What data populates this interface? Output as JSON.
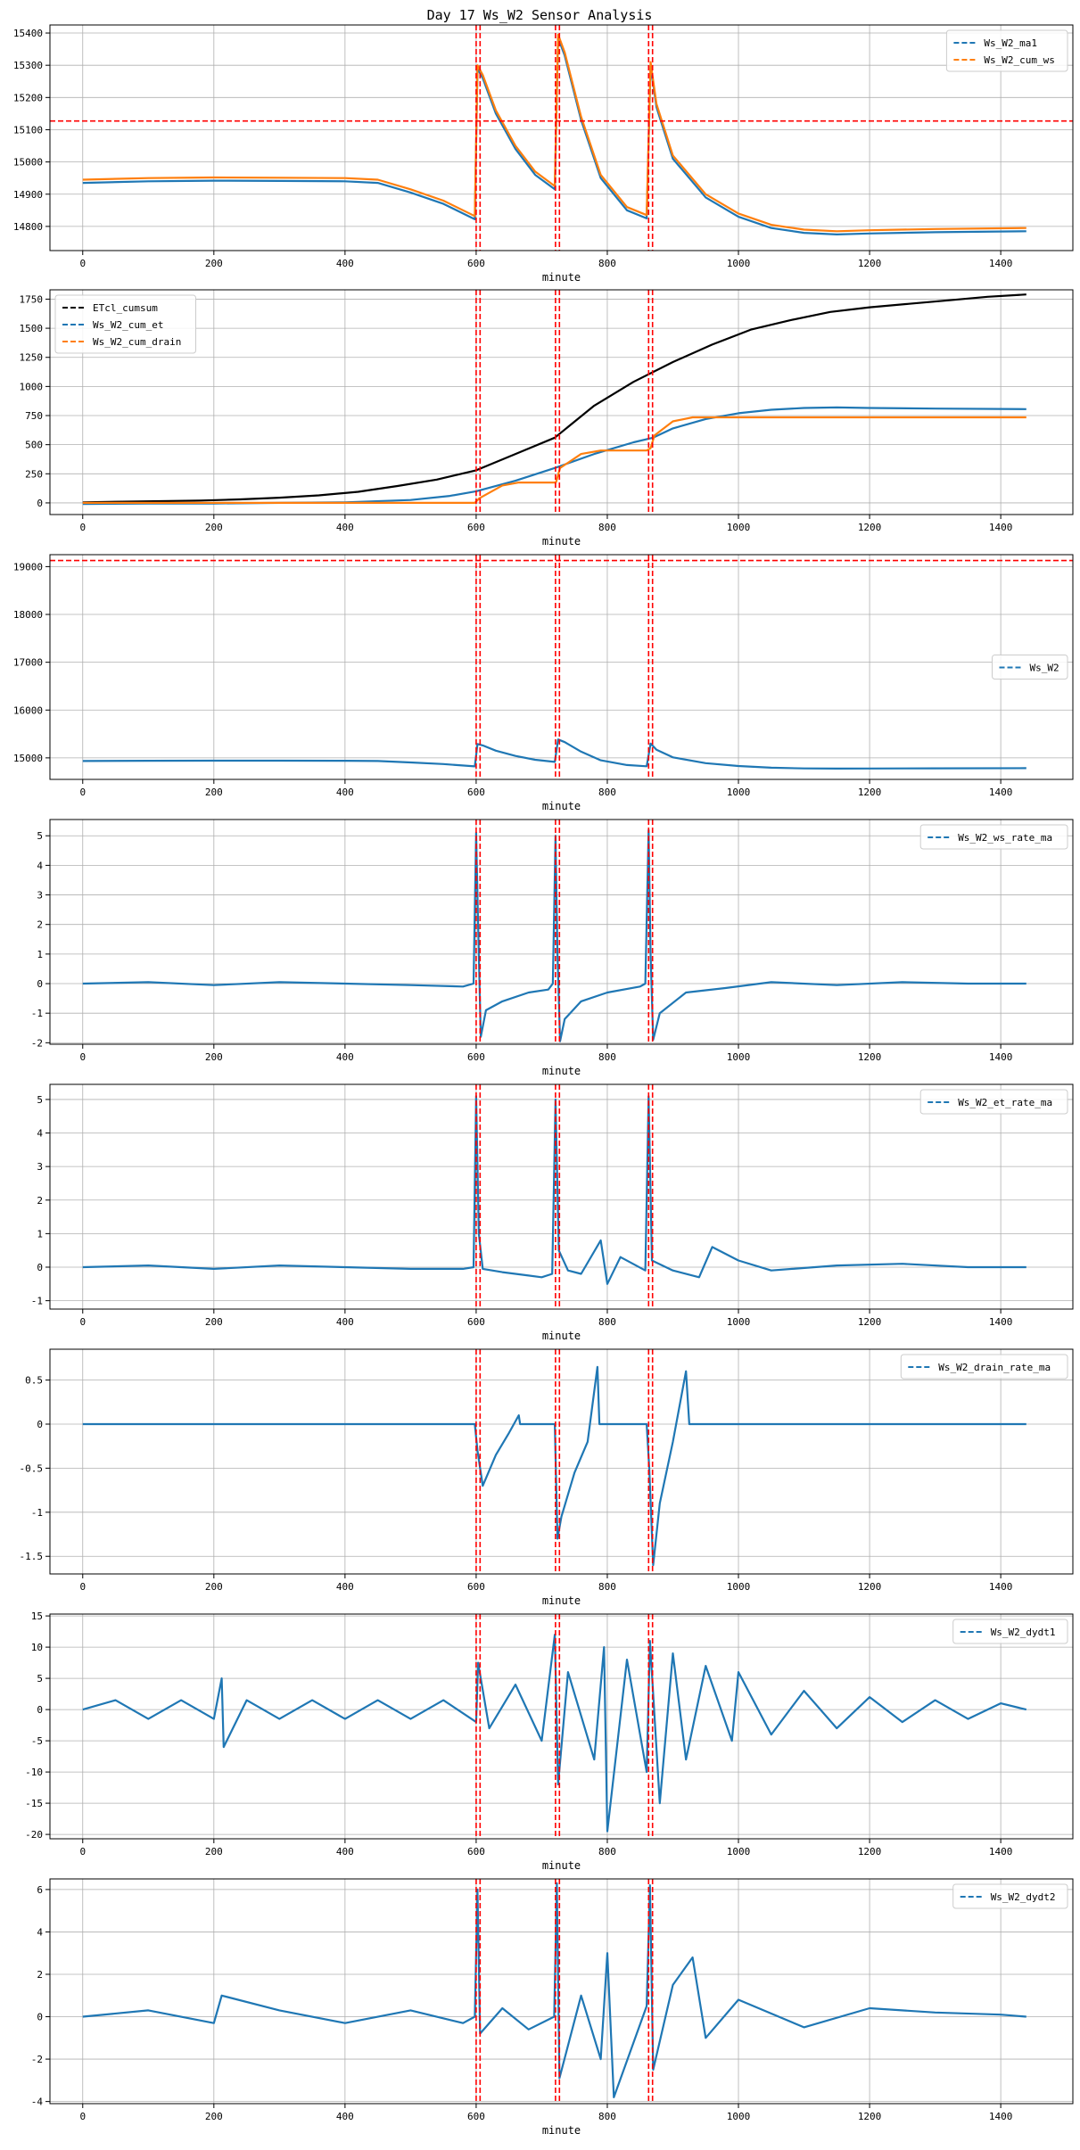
{
  "figure_title": "Day 17 Ws_W2 Sensor Analysis",
  "colors": {
    "blue": "#1f77b4",
    "orange": "#ff7f0e",
    "black": "#000000",
    "marker_red": "#ff0000",
    "grid": "#b0b0b0"
  },
  "chart_data": [
    {
      "type": "line",
      "xlabel": "minute",
      "xlim": [
        -50,
        1510
      ],
      "ylim": [
        14725,
        15425
      ],
      "xticks": [
        0,
        200,
        400,
        600,
        800,
        1000,
        1200,
        1400
      ],
      "yticks": [
        14800,
        14900,
        15000,
        15100,
        15200,
        15300,
        15400
      ],
      "vlines": [
        600,
        606,
        721,
        727,
        863,
        869
      ],
      "hlines": [
        15127
      ],
      "legend_position": "upper right",
      "series": [
        {
          "name": "Ws_W2_ma1",
          "color": "#1f77b4",
          "x": [
            0,
            100,
            200,
            300,
            400,
            450,
            500,
            550,
            598,
            602,
            610,
            630,
            660,
            690,
            720,
            725,
            735,
            760,
            790,
            830,
            860,
            866,
            875,
            900,
            950,
            1000,
            1050,
            1100,
            1150,
            1200,
            1300,
            1439
          ],
          "values": [
            14935,
            14940,
            14942,
            14941,
            14940,
            14935,
            14905,
            14870,
            14822,
            15290,
            15260,
            15150,
            15040,
            14960,
            14915,
            15385,
            15330,
            15130,
            14950,
            14850,
            14825,
            15300,
            15170,
            15010,
            14890,
            14830,
            14795,
            14780,
            14775,
            14778,
            14782,
            14785
          ]
        },
        {
          "name": "Ws_W2_cum_ws",
          "color": "#ff7f0e",
          "x": [
            0,
            100,
            200,
            300,
            400,
            450,
            500,
            550,
            598,
            602,
            610,
            630,
            660,
            690,
            720,
            725,
            735,
            760,
            790,
            830,
            860,
            866,
            875,
            900,
            950,
            1000,
            1050,
            1100,
            1150,
            1200,
            1300,
            1439
          ],
          "values": [
            14945,
            14950,
            14952,
            14951,
            14950,
            14945,
            14915,
            14880,
            14832,
            15300,
            15270,
            15160,
            15050,
            14970,
            14925,
            15395,
            15340,
            15140,
            14960,
            14860,
            14835,
            15310,
            15180,
            15020,
            14900,
            14840,
            14805,
            14790,
            14785,
            14788,
            14792,
            14795
          ]
        }
      ]
    },
    {
      "type": "line",
      "xlabel": "minute",
      "xlim": [
        -50,
        1510
      ],
      "ylim": [
        -100,
        1830
      ],
      "xticks": [
        0,
        200,
        400,
        600,
        800,
        1000,
        1200,
        1400
      ],
      "yticks": [
        0,
        250,
        500,
        750,
        1000,
        1250,
        1500,
        1750
      ],
      "vlines": [
        600,
        606,
        721,
        727,
        863,
        869
      ],
      "hlines": [],
      "legend_position": "upper left",
      "series": [
        {
          "name": "ETcl_cumsum",
          "color": "#000000",
          "x": [
            0,
            60,
            120,
            180,
            240,
            300,
            360,
            420,
            480,
            540,
            600,
            660,
            720,
            780,
            840,
            900,
            960,
            1020,
            1080,
            1140,
            1200,
            1260,
            1320,
            1380,
            1439
          ],
          "values": [
            5,
            10,
            15,
            20,
            30,
            45,
            65,
            95,
            145,
            200,
            280,
            420,
            560,
            835,
            1040,
            1210,
            1360,
            1490,
            1570,
            1640,
            1680,
            1710,
            1740,
            1770,
            1790
          ]
        },
        {
          "name": "Ws_W2_cum_et",
          "color": "#1f77b4",
          "x": [
            0,
            100,
            200,
            300,
            400,
            500,
            560,
            600,
            660,
            720,
            780,
            840,
            870,
            900,
            950,
            1000,
            1050,
            1100,
            1150,
            1200,
            1300,
            1439
          ],
          "values": [
            -10,
            -5,
            -5,
            0,
            5,
            25,
            60,
            100,
            190,
            300,
            420,
            520,
            560,
            640,
            720,
            770,
            800,
            815,
            820,
            815,
            810,
            805
          ]
        },
        {
          "name": "Ws_W2_cum_drain",
          "color": "#ff7f0e",
          "x": [
            0,
            598,
            605,
            640,
            665,
            720,
            722,
            728,
            760,
            790,
            860,
            866,
            872,
            900,
            930,
            1439
          ],
          "values": [
            0,
            0,
            40,
            150,
            175,
            175,
            180,
            300,
            420,
            450,
            450,
            470,
            580,
            700,
            735,
            735
          ]
        }
      ]
    },
    {
      "type": "line",
      "xlabel": "minute",
      "xlim": [
        -50,
        1510
      ],
      "ylim": [
        14550,
        19250
      ],
      "xticks": [
        0,
        200,
        400,
        600,
        800,
        1000,
        1200,
        1400
      ],
      "yticks": [
        15000,
        16000,
        17000,
        18000,
        19000
      ],
      "vlines": [
        600,
        606,
        721,
        727,
        863,
        869
      ],
      "hlines": [
        19127
      ],
      "legend_position": "center right",
      "series": [
        {
          "name": "Ws_W2",
          "color": "#1f77b4",
          "x": [
            0,
            100,
            200,
            300,
            400,
            450,
            500,
            550,
            598,
            602,
            610,
            630,
            660,
            690,
            720,
            725,
            735,
            760,
            790,
            830,
            860,
            866,
            875,
            900,
            950,
            1000,
            1050,
            1100,
            1150,
            1200,
            1300,
            1439
          ],
          "values": [
            14935,
            14940,
            14942,
            14941,
            14940,
            14935,
            14905,
            14870,
            14822,
            15290,
            15260,
            15150,
            15040,
            14960,
            14915,
            15385,
            15330,
            15130,
            14950,
            14850,
            14825,
            15300,
            15170,
            15010,
            14890,
            14830,
            14795,
            14780,
            14775,
            14778,
            14782,
            14785
          ]
        }
      ]
    },
    {
      "type": "line",
      "xlabel": "minute",
      "xlim": [
        -50,
        1510
      ],
      "ylim": [
        -2.05,
        5.55
      ],
      "xticks": [
        0,
        200,
        400,
        600,
        800,
        1000,
        1200,
        1400
      ],
      "yticks": [
        -2,
        -1,
        0,
        1,
        2,
        3,
        4,
        5
      ],
      "vlines": [
        600,
        606,
        721,
        727,
        863,
        869
      ],
      "hlines": [],
      "legend_position": "upper right",
      "series": [
        {
          "name": "Ws_W2_ws_rate_ma",
          "color": "#1f77b4",
          "x": [
            0,
            100,
            200,
            300,
            400,
            500,
            580,
            596,
            600,
            603,
            607,
            615,
            640,
            680,
            710,
            717,
            721,
            724,
            728,
            735,
            760,
            800,
            850,
            858,
            863,
            866,
            870,
            880,
            920,
            980,
            1050,
            1150,
            1250,
            1350,
            1439
          ],
          "values": [
            0,
            0.05,
            -0.05,
            0.05,
            0,
            -0.05,
            -0.1,
            0,
            5.1,
            2.0,
            -1.8,
            -0.9,
            -0.6,
            -0.3,
            -0.2,
            0,
            5.0,
            1.0,
            -1.95,
            -1.2,
            -0.6,
            -0.3,
            -0.1,
            0,
            5.2,
            1.0,
            -1.9,
            -1.0,
            -0.3,
            -0.15,
            0.05,
            -0.05,
            0.05,
            0,
            0
          ]
        }
      ]
    },
    {
      "type": "line",
      "xlabel": "minute",
      "xlim": [
        -50,
        1510
      ],
      "ylim": [
        -1.25,
        5.45
      ],
      "xticks": [
        0,
        200,
        400,
        600,
        800,
        1000,
        1200,
        1400
      ],
      "yticks": [
        -1,
        0,
        1,
        2,
        3,
        4,
        5
      ],
      "vlines": [
        600,
        606,
        721,
        727,
        863,
        869
      ],
      "hlines": [],
      "legend_position": "upper right",
      "series": [
        {
          "name": "Ws_W2_et_rate_ma",
          "color": "#1f77b4",
          "x": [
            0,
            100,
            200,
            300,
            400,
            500,
            580,
            596,
            600,
            604,
            610,
            640,
            680,
            700,
            716,
            721,
            726,
            740,
            760,
            790,
            800,
            820,
            858,
            863,
            868,
            900,
            940,
            960,
            1000,
            1050,
            1150,
            1250,
            1350,
            1439
          ],
          "values": [
            0,
            0.05,
            -0.05,
            0.05,
            0,
            -0.05,
            -0.05,
            0,
            5.1,
            1.0,
            -0.05,
            -0.15,
            -0.25,
            -0.3,
            -0.2,
            5.0,
            0.5,
            -0.1,
            -0.2,
            0.8,
            -0.5,
            0.3,
            -0.1,
            5.1,
            0.2,
            -0.1,
            -0.3,
            0.6,
            0.2,
            -0.1,
            0.05,
            0.1,
            0,
            0
          ]
        }
      ]
    },
    {
      "type": "line",
      "xlabel": "minute",
      "xlim": [
        -50,
        1510
      ],
      "ylim": [
        -1.7,
        0.85
      ],
      "xticks": [
        0,
        200,
        400,
        600,
        800,
        1000,
        1200,
        1400
      ],
      "yticks": [
        -1.5,
        -1.0,
        -0.5,
        0.0,
        0.5
      ],
      "vlines": [
        600,
        606,
        721,
        727,
        863,
        869
      ],
      "hlines": [],
      "legend_position": "upper right",
      "series": [
        {
          "name": "Ws_W2_drain_rate_ma",
          "color": "#1f77b4",
          "x": [
            0,
            598,
            602,
            610,
            630,
            650,
            665,
            667,
            720,
            724,
            730,
            750,
            770,
            785,
            788,
            860,
            864,
            870,
            880,
            900,
            920,
            925,
            1439
          ],
          "values": [
            0,
            0,
            -0.3,
            -0.7,
            -0.35,
            -0.1,
            0.1,
            0,
            0,
            -1.3,
            -1.05,
            -0.55,
            -0.2,
            0.65,
            0,
            0,
            -0.5,
            -1.6,
            -0.9,
            -0.2,
            0.6,
            0,
            0
          ]
        }
      ]
    },
    {
      "type": "line",
      "xlabel": "minute",
      "xlim": [
        -50,
        1510
      ],
      "ylim": [
        -20.7,
        15.3
      ],
      "xticks": [
        0,
        200,
        400,
        600,
        800,
        1000,
        1200,
        1400
      ],
      "yticks": [
        -20,
        -15,
        -10,
        -5,
        0,
        5,
        10,
        15
      ],
      "vlines": [
        600,
        606,
        721,
        727,
        863,
        869
      ],
      "hlines": [],
      "legend_position": "upper right",
      "series": [
        {
          "name": "Ws_W2_dydt1",
          "color": "#1f77b4",
          "x": [
            0,
            50,
            100,
            150,
            200,
            212,
            215,
            250,
            300,
            350,
            400,
            450,
            500,
            550,
            600,
            603,
            620,
            660,
            700,
            720,
            725,
            740,
            780,
            795,
            800,
            830,
            860,
            865,
            880,
            900,
            920,
            950,
            990,
            1000,
            1050,
            1100,
            1150,
            1200,
            1250,
            1300,
            1350,
            1400,
            1439
          ],
          "values": [
            0,
            1.5,
            -1.5,
            1.5,
            -1.5,
            5,
            -6,
            1.5,
            -1.5,
            1.5,
            -1.5,
            1.5,
            -1.5,
            1.5,
            -2,
            7.5,
            -3,
            4,
            -5,
            12,
            -12,
            6,
            -8,
            10,
            -19.5,
            8,
            -10,
            11,
            -15,
            9,
            -8,
            7,
            -5,
            6,
            -4,
            3,
            -3,
            2,
            -2,
            1.5,
            -1.5,
            1,
            0
          ]
        }
      ]
    },
    {
      "type": "line",
      "xlabel": "minute",
      "xlim": [
        -50,
        1510
      ],
      "ylim": [
        -4.1,
        6.5
      ],
      "xticks": [
        0,
        200,
        400,
        600,
        800,
        1000,
        1200,
        1400
      ],
      "yticks": [
        -4,
        -2,
        0,
        2,
        4,
        6
      ],
      "vlines": [
        600,
        606,
        721,
        727,
        863,
        869
      ],
      "hlines": [],
      "legend_position": "upper right",
      "series": [
        {
          "name": "Ws_W2_dydt2",
          "color": "#1f77b4",
          "x": [
            0,
            100,
            200,
            212,
            300,
            400,
            500,
            580,
            598,
            602,
            606,
            640,
            680,
            719,
            723,
            727,
            760,
            790,
            800,
            810,
            860,
            865,
            870,
            900,
            930,
            950,
            1000,
            1100,
            1200,
            1300,
            1400,
            1439
          ],
          "values": [
            0,
            0.3,
            -0.3,
            1.0,
            0.3,
            -0.3,
            0.3,
            -0.3,
            0,
            6.0,
            -0.8,
            0.4,
            -0.6,
            0,
            6.3,
            -2.9,
            1.0,
            -2.0,
            3.0,
            -3.8,
            0.5,
            6.2,
            -2.5,
            1.5,
            2.8,
            -1.0,
            0.8,
            -0.5,
            0.4,
            0.2,
            0.1,
            0
          ]
        }
      ]
    }
  ]
}
